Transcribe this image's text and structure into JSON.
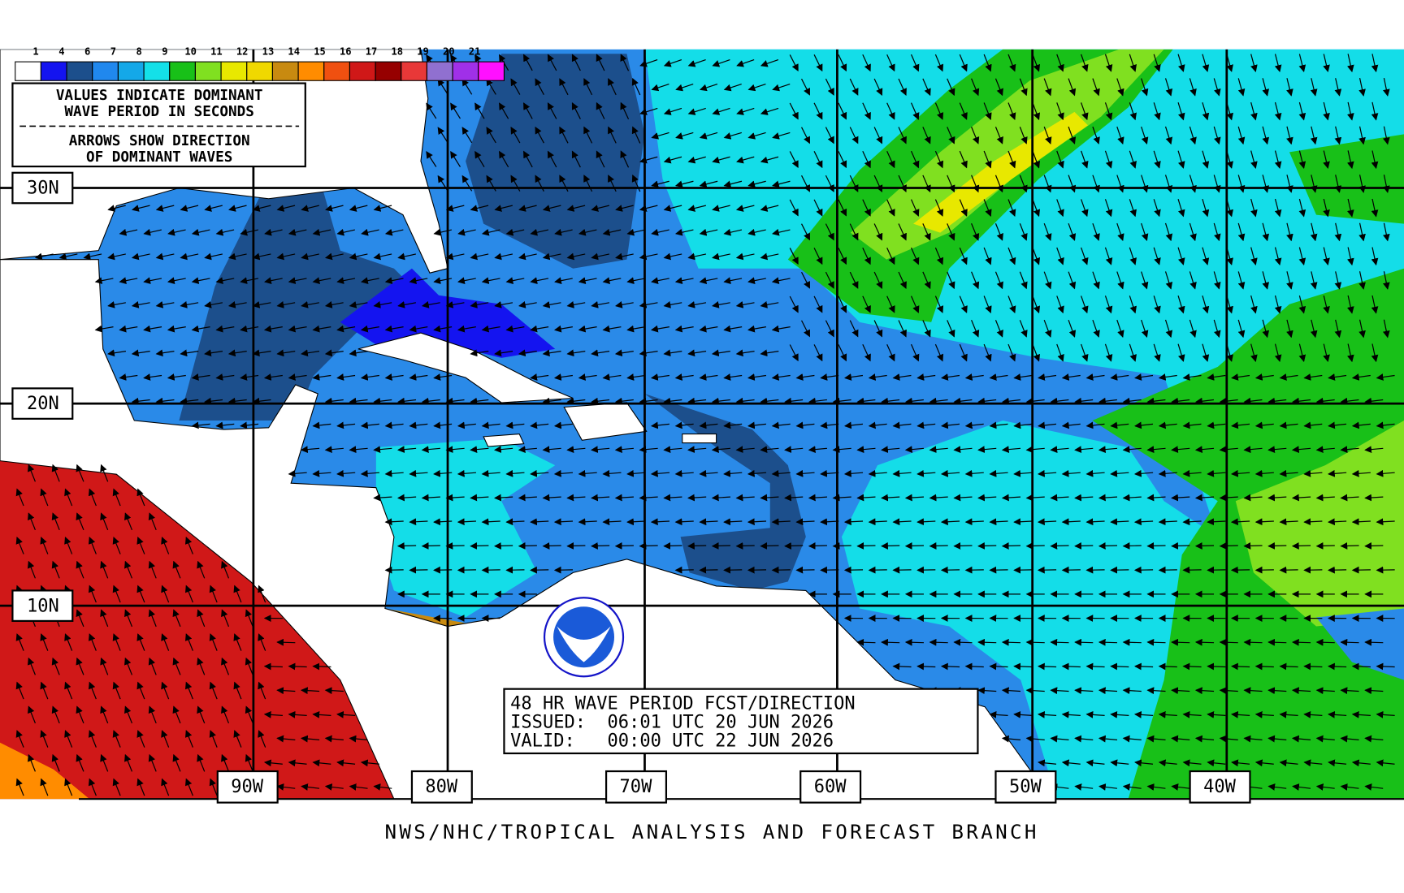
{
  "legend": {
    "labels": [
      "1",
      "4",
      "6",
      "7",
      "8",
      "9",
      "10",
      "11",
      "12",
      "13",
      "14",
      "15",
      "16",
      "17",
      "18",
      "19",
      "20",
      "21"
    ],
    "colors": [
      "#ffffff",
      "#1414f0",
      "#1c4f8c",
      "#2088ee",
      "#14a8e8",
      "#14e0e8",
      "#18c018",
      "#80e020",
      "#e8e800",
      "#f0d800",
      "#c88a10",
      "#ff8c00",
      "#f05010",
      "#d01818",
      "#960000",
      "#e83838",
      "#9070d0",
      "#a030e8",
      "#ff10ff"
    ]
  },
  "notes": [
    "VALUES INDICATE DOMINANT",
    "WAVE PERIOD IN SECONDS",
    "ARROWS SHOW DIRECTION",
    "OF DOMINANT WAVES"
  ],
  "latitudes": [
    "30N",
    "20N",
    "10N"
  ],
  "longitudes": [
    "90W",
    "80W",
    "70W",
    "60W",
    "50W",
    "40W"
  ],
  "product": {
    "title": "48 HR WAVE PERIOD FCST/DIRECTION",
    "issued": "ISSUED:  06:01 UTC 20 JUN 2026",
    "valid": "VALID:   00:00 UTC 22 JUN 2026"
  },
  "footer": "NWS/NHC/TROPICAL ANALYSIS AND FORECAST BRANCH"
}
